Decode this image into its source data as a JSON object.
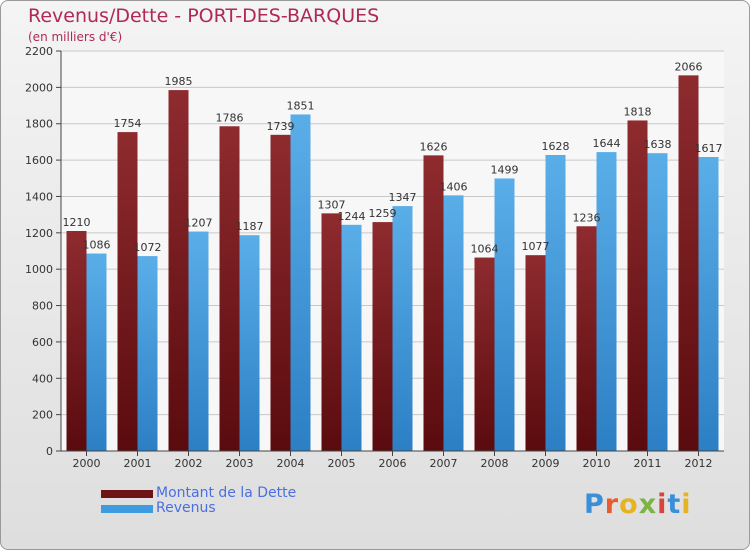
{
  "title": "Revenus/Dette - PORT-DES-BARQUES",
  "subtitle": "(en milliers d'€)",
  "logo_text": "Proxiti",
  "colors": {
    "dette": "#7a1c1f",
    "revenus": "#3f9be0",
    "title": "#b0285a",
    "legend_text": "#4a6fe0"
  },
  "chart_data": {
    "type": "bar",
    "categories": [
      "2000",
      "2001",
      "2002",
      "2003",
      "2004",
      "2005",
      "2006",
      "2007",
      "2008",
      "2009",
      "2010",
      "2011",
      "2012"
    ],
    "series": [
      {
        "name": "Montant de la Dette",
        "values": [
          1210,
          1754,
          1985,
          1786,
          1739,
          1307,
          1259,
          1626,
          1064,
          1077,
          1236,
          1818,
          2066
        ]
      },
      {
        "name": "Revenus",
        "values": [
          1086,
          1072,
          1207,
          1187,
          1851,
          1244,
          1347,
          1406,
          1499,
          1628,
          1644,
          1638,
          1617
        ]
      }
    ],
    "yticks": [
      0,
      200,
      400,
      600,
      800,
      1000,
      1200,
      1400,
      1600,
      1800,
      2000,
      2200
    ],
    "ylim": [
      0,
      2200
    ],
    "grid": true,
    "legend": "bottom-left"
  }
}
